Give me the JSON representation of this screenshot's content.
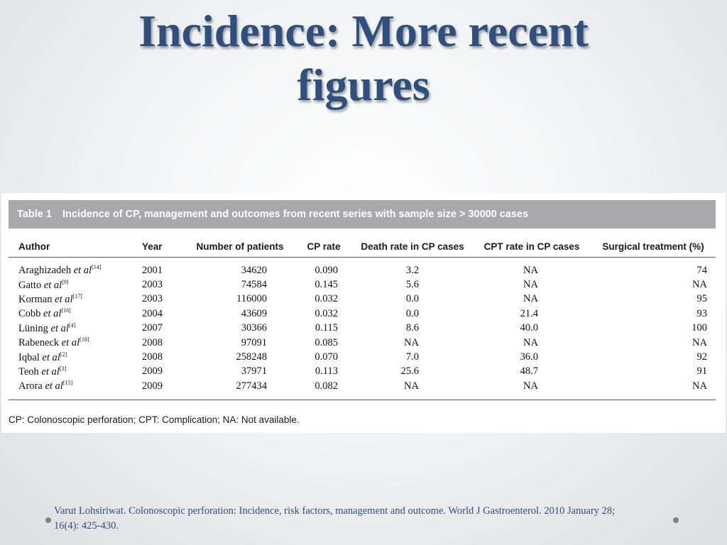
{
  "slide": {
    "title_line1": "Incidence: More recent",
    "title_line2": "figures",
    "citation": "Varut Lohsiriwat. Colonoscopic perforation: Incidence, risk factors, management and outcome. World J Gastroenterol. 2010 January 28; 16(4): 425-430."
  },
  "table": {
    "caption_label": "Table 1",
    "caption_text": "Incidence of CP, management and outcomes from recent series with sample size  >  30000 cases",
    "headers": [
      "Author",
      "Year",
      "Number of patients",
      "CP rate",
      "Death rate in CP cases",
      "CPT rate in CP cases",
      "Surgical treatment (%)"
    ],
    "rows": [
      {
        "author": "Araghizadeh",
        "etal": "et al",
        "ref": "[14]",
        "year": "2001",
        "patients": "34620",
        "cp_rate": "0.090",
        "death_rate": "3.2",
        "cpt_rate": "NA",
        "surgical": "74"
      },
      {
        "author": "Gatto",
        "etal": "et al",
        "ref": "[9]",
        "year": "2003",
        "patients": "74584",
        "cp_rate": "0.145",
        "death_rate": "5.6",
        "cpt_rate": "NA",
        "surgical": "NA"
      },
      {
        "author": "Korman",
        "etal": "et al",
        "ref": "[17]",
        "year": "2003",
        "patients": "116000",
        "cp_rate": "0.032",
        "death_rate": "0.0",
        "cpt_rate": "NA",
        "surgical": "95"
      },
      {
        "author": "Cobb",
        "etal": "et al",
        "ref": "[16]",
        "year": "2004",
        "patients": "43609",
        "cp_rate": "0.032",
        "death_rate": "0.0",
        "cpt_rate": "21.4",
        "surgical": "93"
      },
      {
        "author": "Lüning",
        "etal": "et al",
        "ref": "[4]",
        "year": "2007",
        "patients": "30366",
        "cp_rate": "0.115",
        "death_rate": "8.6",
        "cpt_rate": "40.0",
        "surgical": "100"
      },
      {
        "author": "Rabeneck",
        "etal": "et al",
        "ref": "[18]",
        "year": "2008",
        "patients": "97091",
        "cp_rate": "0.085",
        "death_rate": "NA",
        "cpt_rate": "NA",
        "surgical": "NA"
      },
      {
        "author": "Iqbal",
        "etal": "et al",
        "ref": "[2]",
        "year": "2008",
        "patients": "258248",
        "cp_rate": "0.070",
        "death_rate": "7.0",
        "cpt_rate": "36.0",
        "surgical": "92"
      },
      {
        "author": "Teoh",
        "etal": "et al",
        "ref": "[3]",
        "year": "2009",
        "patients": "37971",
        "cp_rate": "0.113",
        "death_rate": "25.6",
        "cpt_rate": "48.7",
        "surgical": "91"
      },
      {
        "author": "Arora",
        "etal": "et al",
        "ref": "[15]",
        "year": "2009",
        "patients": "277434",
        "cp_rate": "0.082",
        "death_rate": "NA",
        "cpt_rate": "NA",
        "surgical": "NA"
      }
    ],
    "footnote": "CP: Colonoscopic perforation; CPT: Complication; NA: Not available."
  }
}
